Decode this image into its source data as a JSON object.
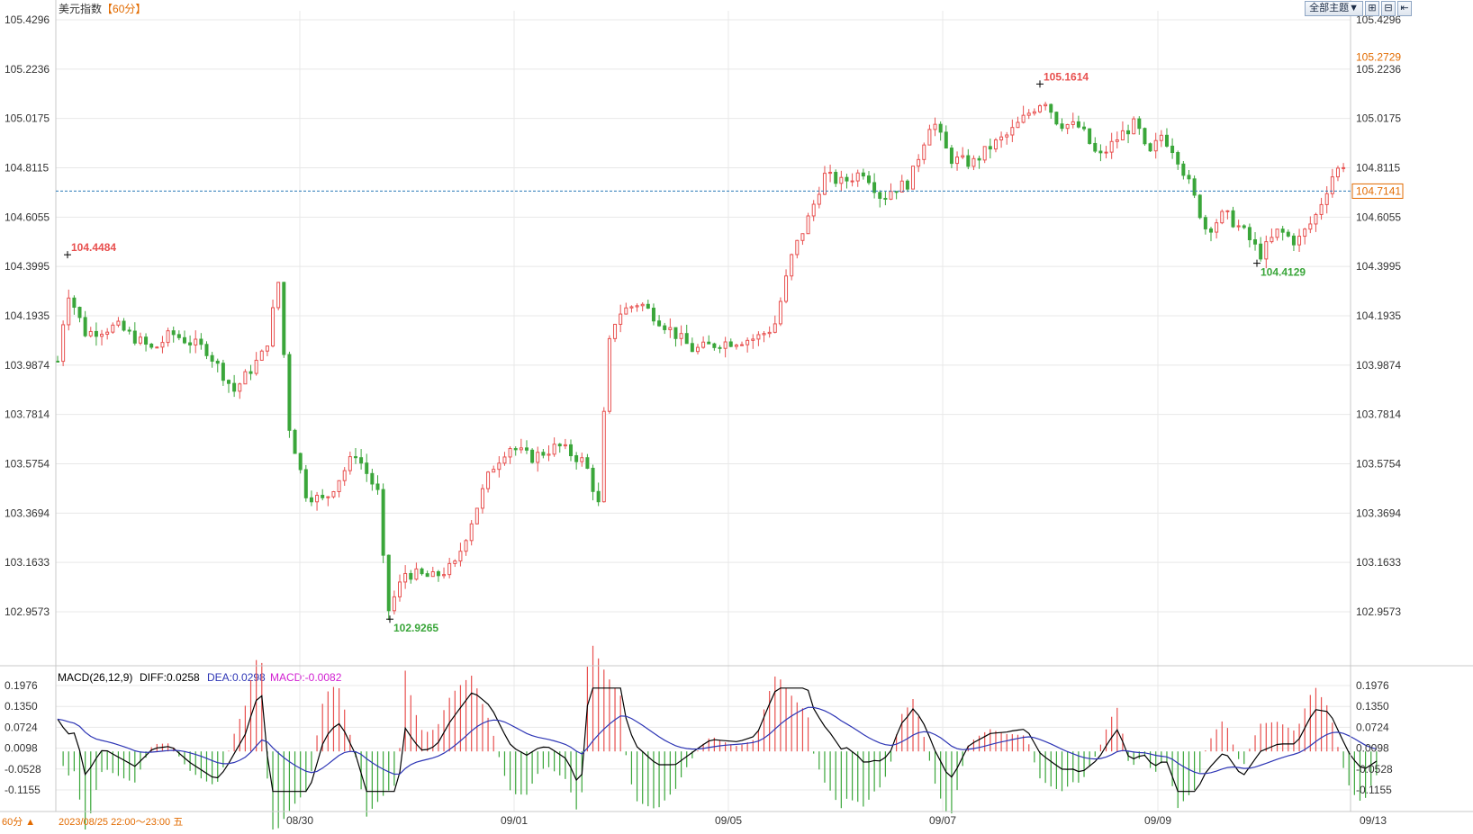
{
  "title": "美元指数",
  "period": "【60分】",
  "controls": {
    "theme_label": "全部主题▼",
    "icon_layout": "layout-icon",
    "icon_layout2": "layout-alt-icon",
    "icon_back": "back-icon"
  },
  "timeframe": "60分 ▲",
  "hover_date": "2023/08/25 22:00～23:00 五",
  "right_price_tag_top": "105.2729",
  "right_price_tag_current": "104.7141",
  "macd": {
    "label": "MACD(26,12,9)",
    "diff": "DIFF:0.0258",
    "dea": "DEA:0.0298",
    "macd": "MACD:-0.0082"
  },
  "colors": {
    "up": "#e8504f",
    "down": "#3aa63a",
    "diff": "#000000",
    "dea": "#2d35b5",
    "grid": "#e8e8e8",
    "dashed": "#2a7ab8",
    "accent": "#e26b00"
  },
  "chart_data": {
    "type": "candlestick",
    "x_labels": [
      "08/30",
      "09/01",
      "09/05",
      "09/07",
      "09/09",
      "09/13"
    ],
    "y_ticks": [
      105.4296,
      105.2236,
      105.0175,
      104.8115,
      104.6055,
      104.3995,
      104.1935,
      103.9874,
      103.7814,
      103.5754,
      103.3694,
      103.1633,
      102.9573
    ],
    "y_min": 102.95,
    "y_max": 105.43,
    "high_label": "105.1614",
    "low_label": "102.9265",
    "local_high_label": "104.4484",
    "local_low_label": "104.4129",
    "current_price": 104.7141,
    "macd_ticks": [
      0.1976,
      0.135,
      0.0724,
      0.0098,
      -0.0528,
      -0.1155
    ],
    "macd_ticks_text": [
      "0.1976",
      "0.1350",
      "0.0724",
      "0.0098",
      "-0.0528",
      "-0.1155"
    ],
    "y_ticks_text": [
      "105.4296",
      "105.2236",
      "105.0175",
      "104.8115",
      "104.6055",
      "104.3995",
      "104.1935",
      "103.9874",
      "103.7814",
      "103.5754",
      "103.3694",
      "103.1633",
      "102.9573"
    ]
  }
}
